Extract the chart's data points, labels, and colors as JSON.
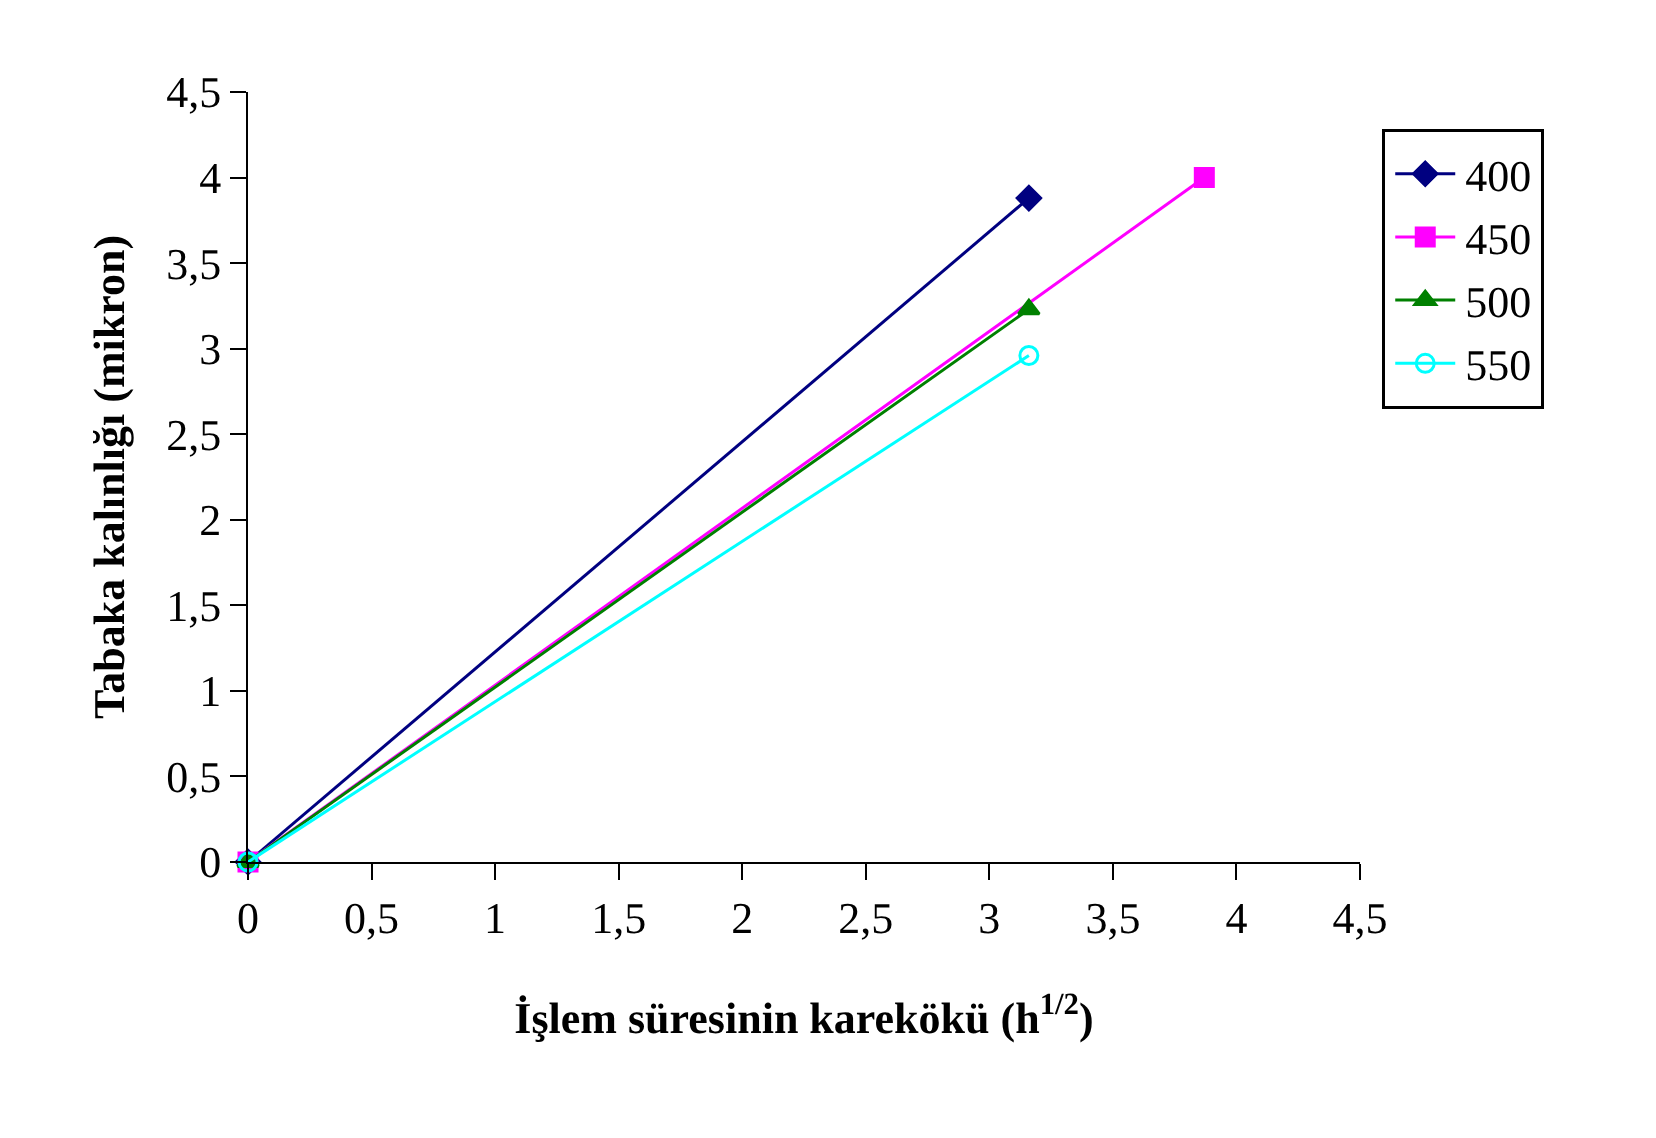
{
  "chart_data": {
    "type": "line",
    "xlabel": "İşlem süresinin karekökü (h$^{1/2}$)",
    "ylabel": "Tabaka kalınlığı (mikron)",
    "series": [
      {
        "name": "400",
        "color": "#000080",
        "marker": "diamond",
        "x": [
          0,
          3.16
        ],
        "values": [
          0,
          3.88
        ]
      },
      {
        "name": "450",
        "color": "#ff00ff",
        "marker": "square",
        "x": [
          0,
          3.87
        ],
        "values": [
          0,
          4.0
        ]
      },
      {
        "name": "500",
        "color": "#008000",
        "marker": "triangle",
        "x": [
          0,
          3.16
        ],
        "values": [
          0,
          3.23
        ]
      },
      {
        "name": "550",
        "color": "#00ffff",
        "marker": "circle-open",
        "x": [
          0,
          3.16
        ],
        "values": [
          0,
          2.96
        ]
      }
    ],
    "xlim": [
      0,
      4.5
    ],
    "ylim": [
      0,
      4.5
    ],
    "xticks": [
      0,
      {
        "value": 0.5,
        "label": "0,5"
      },
      1,
      {
        "value": 1.5,
        "label": "1,5"
      },
      2,
      {
        "value": 2.5,
        "label": "2,5"
      },
      3,
      {
        "value": 3.5,
        "label": "3,5"
      },
      4,
      {
        "value": 4.5,
        "label": "4,5"
      }
    ],
    "yticks": [
      0,
      {
        "value": 0.5,
        "label": "0,5"
      },
      1,
      {
        "value": 1.5,
        "label": "1,5"
      },
      2,
      {
        "value": 2.5,
        "label": "2,5"
      },
      3,
      {
        "value": 3.5,
        "label": "3,5"
      },
      4,
      {
        "value": 4.5,
        "label": "4,5"
      }
    ],
    "grid": false,
    "legend": "right",
    "line_style": "solid"
  }
}
